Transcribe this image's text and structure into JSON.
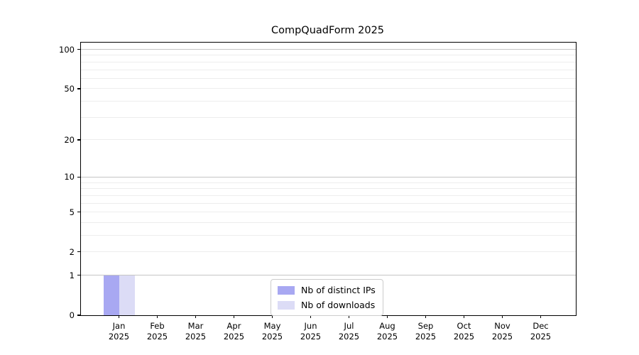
{
  "chart_data": {
    "type": "bar",
    "title": "CompQuadForm 2025",
    "categories": [
      "Jan",
      "Feb",
      "Mar",
      "Apr",
      "May",
      "Jun",
      "Jul",
      "Aug",
      "Sep",
      "Oct",
      "Nov",
      "Dec"
    ],
    "year": "2025",
    "series": [
      {
        "name": "Nb of distinct IPs",
        "color": "#a8a8f2",
        "values": [
          1,
          0,
          0,
          0,
          0,
          0,
          0,
          0,
          0,
          0,
          0,
          0
        ]
      },
      {
        "name": "Nb of downloads",
        "color": "#dcdcf6",
        "values": [
          1,
          0,
          0,
          0,
          0,
          0,
          0,
          0,
          0,
          0,
          0,
          0
        ]
      }
    ],
    "yscale": "log1p",
    "ylim": [
      0,
      115
    ],
    "yticks": [
      0,
      1,
      2,
      5,
      10,
      20,
      50,
      100
    ],
    "grid": {
      "major": [
        1,
        10,
        100
      ],
      "minor": [
        2,
        3,
        4,
        5,
        6,
        7,
        8,
        9,
        20,
        30,
        40,
        50,
        60,
        70,
        80,
        90
      ]
    },
    "colors": {
      "grid_major": "#c5c5c5",
      "grid_minor": "#ededed",
      "axis": "#000000",
      "background": "#ffffff"
    },
    "legend_position": "bottom-center-inside"
  }
}
